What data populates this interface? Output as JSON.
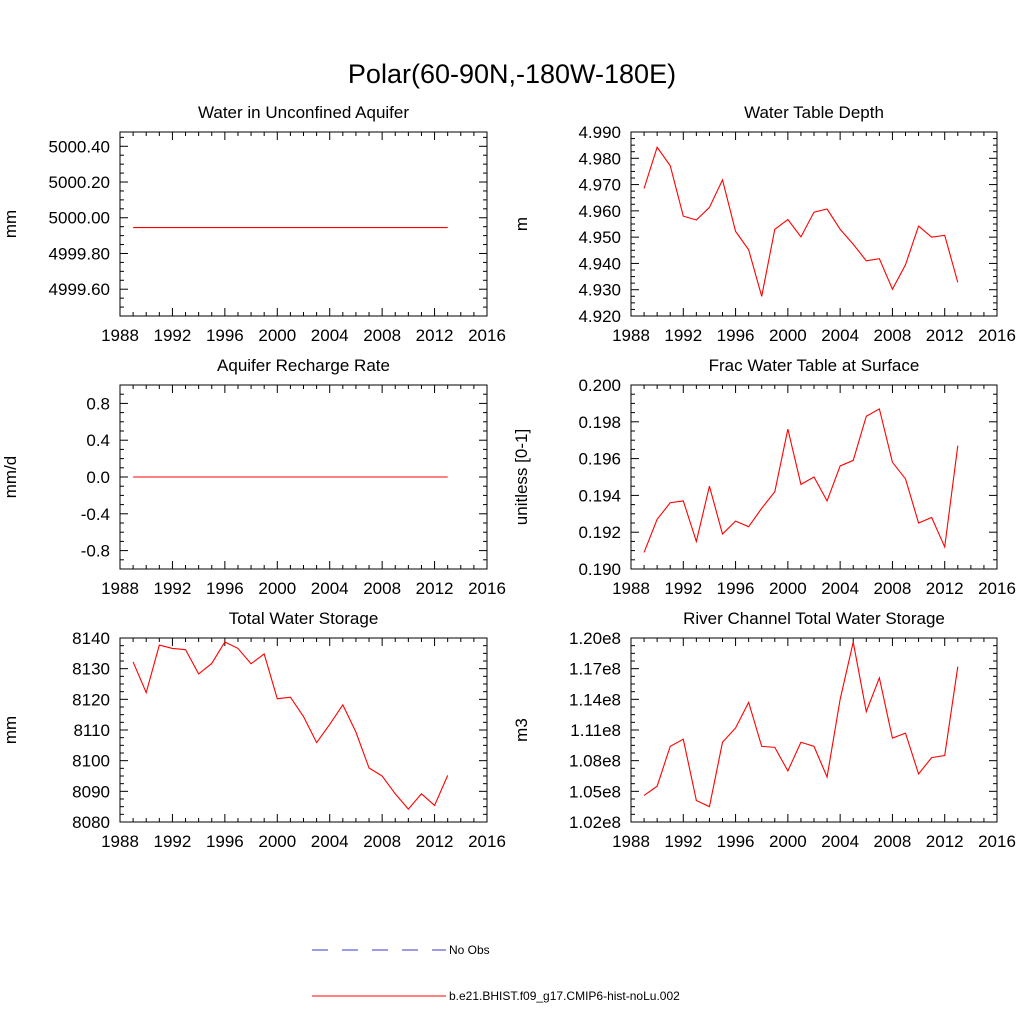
{
  "figure": {
    "title": "Polar(60-90N,-180W-180E)"
  },
  "chart_data": [
    {
      "type": "line",
      "title": "Water in Unconfined Aquifer",
      "xlabel": "",
      "ylabel": "mm",
      "xlim": [
        1988,
        2016
      ],
      "ylim": [
        4999.45,
        5000.48
      ],
      "xticks": [
        1988,
        1992,
        1996,
        2000,
        2004,
        2008,
        2012,
        2016
      ],
      "yticks": [
        4999.6,
        4999.8,
        5000.0,
        5000.2,
        5000.4
      ],
      "ytick_labels": [
        "4999.60",
        "4999.80",
        "5000.00",
        "5000.20",
        "5000.40"
      ],
      "series": [
        {
          "name": "b.e21.BHIST.f09_g17.CMIP6-hist-noLu.002",
          "color": "#ff0000",
          "x": [
            1989,
            1990,
            1991,
            1992,
            1993,
            1994,
            1995,
            1996,
            1997,
            1998,
            1999,
            2000,
            2001,
            2002,
            2003,
            2004,
            2005,
            2006,
            2007,
            2008,
            2009,
            2010,
            2011,
            2012,
            2013
          ],
          "values": [
            4999.945,
            4999.945,
            4999.945,
            4999.945,
            4999.945,
            4999.945,
            4999.945,
            4999.945,
            4999.945,
            4999.945,
            4999.945,
            4999.945,
            4999.945,
            4999.945,
            4999.945,
            4999.945,
            4999.945,
            4999.945,
            4999.945,
            4999.945,
            4999.945,
            4999.945,
            4999.945,
            4999.945,
            4999.945
          ]
        }
      ]
    },
    {
      "type": "line",
      "title": "Water Table Depth",
      "xlabel": "",
      "ylabel": "m",
      "xlim": [
        1988,
        2016
      ],
      "ylim": [
        4.92,
        4.99
      ],
      "xticks": [
        1988,
        1992,
        1996,
        2000,
        2004,
        2008,
        2012,
        2016
      ],
      "yticks": [
        4.92,
        4.93,
        4.94,
        4.95,
        4.96,
        4.97,
        4.98,
        4.99
      ],
      "ytick_labels": [
        "4.920",
        "4.930",
        "4.940",
        "4.950",
        "4.960",
        "4.970",
        "4.980",
        "4.990"
      ],
      "series": [
        {
          "name": "b.e21.BHIST.f09_g17.CMIP6-hist-noLu.002",
          "color": "#ff0000",
          "x": [
            1989,
            1990,
            1991,
            1992,
            1993,
            1994,
            1995,
            1996,
            1997,
            1998,
            1999,
            2000,
            2001,
            2002,
            2003,
            2004,
            2005,
            2006,
            2007,
            2008,
            2009,
            2010,
            2011,
            2012,
            2013
          ],
          "values": [
            4.9685,
            4.9842,
            4.9772,
            4.958,
            4.9565,
            4.9613,
            4.9718,
            4.9522,
            4.9452,
            4.9275,
            4.953,
            4.9567,
            4.9501,
            4.9595,
            4.9607,
            4.953,
            4.9473,
            4.941,
            4.9418,
            4.9302,
            4.9395,
            4.9542,
            4.95,
            4.9507,
            4.9328
          ]
        }
      ]
    },
    {
      "type": "line",
      "title": "Aquifer Recharge Rate",
      "xlabel": "",
      "ylabel": "mm/d",
      "xlim": [
        1988,
        2016
      ],
      "ylim": [
        -1.0,
        1.0
      ],
      "xticks": [
        1988,
        1992,
        1996,
        2000,
        2004,
        2008,
        2012,
        2016
      ],
      "yticks": [
        -0.8,
        -0.4,
        0.0,
        0.4,
        0.8
      ],
      "ytick_labels": [
        "-0.8",
        "-0.4",
        "0.0",
        "0.4",
        "0.8"
      ],
      "series": [
        {
          "name": "b.e21.BHIST.f09_g17.CMIP6-hist-noLu.002",
          "color": "#ff0000",
          "x": [
            1989,
            1990,
            1991,
            1992,
            1993,
            1994,
            1995,
            1996,
            1997,
            1998,
            1999,
            2000,
            2001,
            2002,
            2003,
            2004,
            2005,
            2006,
            2007,
            2008,
            2009,
            2010,
            2011,
            2012,
            2013
          ],
          "values": [
            0,
            0,
            0,
            0,
            0,
            0,
            0,
            0,
            0,
            0,
            0,
            0,
            0,
            0,
            0,
            0,
            0,
            0,
            0,
            0,
            0,
            0,
            0,
            0,
            0
          ]
        }
      ]
    },
    {
      "type": "line",
      "title": "Frac Water Table at Surface",
      "xlabel": "",
      "ylabel": "unitless [0-1]",
      "xlim": [
        1988,
        2016
      ],
      "ylim": [
        0.19,
        0.2
      ],
      "xticks": [
        1988,
        1992,
        1996,
        2000,
        2004,
        2008,
        2012,
        2016
      ],
      "yticks": [
        0.19,
        0.192,
        0.194,
        0.196,
        0.198,
        0.2
      ],
      "ytick_labels": [
        "0.190",
        "0.192",
        "0.194",
        "0.196",
        "0.198",
        "0.200"
      ],
      "series": [
        {
          "name": "b.e21.BHIST.f09_g17.CMIP6-hist-noLu.002",
          "color": "#ff0000",
          "x": [
            1989,
            1990,
            1991,
            1992,
            1993,
            1994,
            1995,
            1996,
            1997,
            1998,
            1999,
            2000,
            2001,
            2002,
            2003,
            2004,
            2005,
            2006,
            2007,
            2008,
            2009,
            2010,
            2011,
            2012,
            2013
          ],
          "values": [
            0.1909,
            0.1927,
            0.1936,
            0.1937,
            0.1915,
            0.1945,
            0.1919,
            0.1926,
            0.1923,
            0.1933,
            0.1942,
            0.1976,
            0.1946,
            0.195,
            0.1937,
            0.1956,
            0.1959,
            0.1983,
            0.1987,
            0.1958,
            0.1949,
            0.1925,
            0.1928,
            0.1912,
            0.1967
          ]
        }
      ]
    },
    {
      "type": "line",
      "title": "Total Water Storage",
      "xlabel": "",
      "ylabel": "mm",
      "xlim": [
        1988,
        2016
      ],
      "ylim": [
        8080,
        8140
      ],
      "xticks": [
        1988,
        1992,
        1996,
        2000,
        2004,
        2008,
        2012,
        2016
      ],
      "yticks": [
        8080,
        8090,
        8100,
        8110,
        8120,
        8130,
        8140
      ],
      "ytick_labels": [
        "8080",
        "8090",
        "8100",
        "8110",
        "8120",
        "8130",
        "8140"
      ],
      "series": [
        {
          "name": "b.e21.BHIST.f09_g17.CMIP6-hist-noLu.002",
          "color": "#ff0000",
          "x": [
            1989,
            1990,
            1991,
            1992,
            1993,
            1994,
            1995,
            1996,
            1997,
            1998,
            1999,
            2000,
            2001,
            2002,
            2003,
            2004,
            2005,
            2006,
            2007,
            2008,
            2009,
            2010,
            2011,
            2012,
            2013
          ],
          "values": [
            8132.2,
            8122.2,
            8137.7,
            8136.6,
            8136.2,
            8128.3,
            8131.7,
            8138.7,
            8136.6,
            8131.6,
            8134.8,
            8120.2,
            8120.7,
            8114.4,
            8105.9,
            8111.8,
            8118.2,
            8109.3,
            8097.6,
            8095.0,
            8089.2,
            8084.2,
            8089.2,
            8085.4,
            8095.2
          ]
        }
      ]
    },
    {
      "type": "line",
      "title": "River Channel Total Water Storage",
      "xlabel": "",
      "ylabel": "m3",
      "xlim": [
        1988,
        2016
      ],
      "ylim": [
        102000000,
        120000000
      ],
      "xticks": [
        1988,
        1992,
        1996,
        2000,
        2004,
        2008,
        2012,
        2016
      ],
      "yticks": [
        102000000,
        105000000,
        108000000,
        111000000,
        114000000,
        117000000,
        120000000
      ],
      "ytick_labels": [
        "1.02e8",
        "1.05e8",
        "1.08e8",
        "1.11e8",
        "1.14e8",
        "1.17e8",
        "1.20e8"
      ],
      "series": [
        {
          "name": "b.e21.BHIST.f09_g17.CMIP6-hist-noLu.002",
          "color": "#ff0000",
          "x": [
            1989,
            1990,
            1991,
            1992,
            1993,
            1994,
            1995,
            1996,
            1997,
            1998,
            1999,
            2000,
            2001,
            2002,
            2003,
            2004,
            2005,
            2006,
            2007,
            2008,
            2009,
            2010,
            2011,
            2012,
            2013
          ],
          "values": [
            104600000,
            105500000,
            109400000,
            110100000,
            104100000,
            103500000,
            109800000,
            111200000,
            113700000,
            109400000,
            109300000,
            107000000,
            109800000,
            109400000,
            106400000,
            114000000,
            119600000,
            112800000,
            116100000,
            110200000,
            110700000,
            106700000,
            108300000,
            108500000,
            117200000
          ]
        }
      ]
    }
  ],
  "legend": {
    "entries": [
      {
        "label": "No Obs",
        "style": "dashed",
        "color": "#3a3ac8"
      },
      {
        "label": "b.e21.BHIST.f09_g17.CMIP6-hist-noLu.002",
        "style": "solid",
        "color": "#ff0000"
      }
    ]
  }
}
